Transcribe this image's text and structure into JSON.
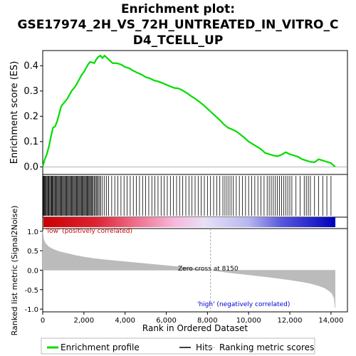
{
  "title_lines": [
    "Enrichment plot:",
    "GSE17974_2H_VS_72H_UNTREATED_IN_VITRO_C",
    "D4_TCELL_UP"
  ],
  "colors": {
    "es_line": "#00dd00",
    "hits": "#000000",
    "metric_fill": "#bbbbbb",
    "pos_label": "#cc0000",
    "neg_label": "#0000cc",
    "zero_line": "#aaaaaa"
  },
  "chart_data": [
    {
      "type": "line",
      "name": "enrichment-profile",
      "ylabel": "Enrichment score (ES)",
      "xlim": [
        0,
        14800
      ],
      "ylim": [
        -0.03,
        0.46
      ],
      "yticks": [
        0.0,
        0.1,
        0.2,
        0.3,
        0.4
      ],
      "ytick_labels": [
        "0.0",
        "0.1",
        "0.2",
        "0.3",
        "0.4"
      ],
      "x": [
        0,
        100,
        200,
        300,
        400,
        500,
        600,
        700,
        800,
        900,
        1000,
        1100,
        1200,
        1300,
        1400,
        1500,
        1600,
        1700,
        1800,
        1900,
        2000,
        2100,
        2200,
        2300,
        2400,
        2500,
        2600,
        2700,
        2800,
        2900,
        3000,
        3200,
        3400,
        3600,
        3800,
        4000,
        4200,
        4400,
        4600,
        4800,
        5000,
        5200,
        5400,
        5600,
        5800,
        6000,
        6200,
        6400,
        6600,
        6800,
        7000,
        7200,
        7400,
        7600,
        7800,
        8000,
        8200,
        8400,
        8600,
        8800,
        9000,
        9200,
        9400,
        9600,
        9800,
        10000,
        10200,
        10400,
        10600,
        10800,
        11000,
        11200,
        11400,
        11600,
        11800,
        12000,
        12200,
        12400,
        12600,
        12800,
        13000,
        13200,
        13400,
        13600,
        13800,
        14000,
        14200
      ],
      "y": [
        0.0,
        0.03,
        0.05,
        0.08,
        0.12,
        0.155,
        0.16,
        0.18,
        0.21,
        0.24,
        0.25,
        0.26,
        0.27,
        0.285,
        0.3,
        0.31,
        0.32,
        0.335,
        0.35,
        0.365,
        0.375,
        0.39,
        0.405,
        0.415,
        0.413,
        0.41,
        0.425,
        0.435,
        0.44,
        0.43,
        0.44,
        0.425,
        0.41,
        0.41,
        0.405,
        0.395,
        0.39,
        0.38,
        0.372,
        0.365,
        0.355,
        0.35,
        0.342,
        0.338,
        0.332,
        0.325,
        0.318,
        0.312,
        0.31,
        0.302,
        0.292,
        0.28,
        0.27,
        0.258,
        0.245,
        0.23,
        0.215,
        0.2,
        0.185,
        0.168,
        0.155,
        0.148,
        0.14,
        0.128,
        0.115,
        0.1,
        0.09,
        0.08,
        0.07,
        0.055,
        0.05,
        0.045,
        0.042,
        0.048,
        0.058,
        0.05,
        0.045,
        0.04,
        0.03,
        0.025,
        0.02,
        0.018,
        0.03,
        0.025,
        0.02,
        0.015,
        0.0
      ]
    },
    {
      "type": "bar",
      "name": "hits",
      "x": [
        30,
        60,
        90,
        120,
        160,
        200,
        240,
        270,
        300,
        340,
        380,
        420,
        450,
        480,
        520,
        560,
        600,
        640,
        680,
        720,
        760,
        800,
        840,
        880,
        920,
        960,
        1000,
        1040,
        1080,
        1120,
        1160,
        1200,
        1240,
        1280,
        1320,
        1360,
        1400,
        1440,
        1480,
        1520,
        1560,
        1600,
        1640,
        1680,
        1720,
        1760,
        1800,
        1840,
        1880,
        1920,
        1960,
        2000,
        2040,
        2080,
        2120,
        2160,
        2200,
        2240,
        2280,
        2320,
        2360,
        2400,
        2450,
        2500,
        2550,
        2600,
        2650,
        2700,
        2760,
        2820,
        2900,
        3000,
        3100,
        3200,
        3350,
        3500,
        3650,
        3800,
        3950,
        4100,
        4250,
        4400,
        4550,
        4700,
        4850,
        5000,
        5150,
        5300,
        5450,
        5600,
        5750,
        5900,
        6050,
        6200,
        6350,
        6500,
        6650,
        6800,
        6950,
        7100,
        7250,
        7400,
        7550,
        7700,
        7850,
        8000,
        8150,
        8300,
        8450,
        8600,
        8750,
        8850,
        8950,
        9050,
        9150,
        9250,
        9400,
        9550,
        9700,
        9850,
        10000,
        10150,
        10300,
        10450,
        10600,
        10750,
        10900,
        11000,
        11100,
        11200,
        11300,
        11400,
        11500,
        11600,
        11700,
        11800,
        11900,
        12000,
        12100,
        12300,
        12500,
        12700,
        12800,
        12900,
        13000,
        13200,
        13400,
        13600,
        13800,
        14000
      ]
    },
    {
      "type": "area",
      "name": "ranked-list-metric",
      "ylabel": "Ranked list metric (Signal2Noise)",
      "xlabel": "Rank in Ordered Dataset",
      "xlim": [
        0,
        14800
      ],
      "ylim": [
        -1.07,
        1.07
      ],
      "xticks": [
        0,
        2000,
        4000,
        6000,
        8000,
        10000,
        12000,
        14000
      ],
      "xtick_labels": [
        "0",
        "2,000",
        "4,000",
        "6,000",
        "8,000",
        "10,000",
        "12,000",
        "14,000"
      ],
      "yticks": [
        -1.0,
        -0.5,
        0.0,
        0.5,
        1.0
      ],
      "ytick_labels": [
        "-1.0",
        "-0.5",
        "0.0",
        "0.5",
        "1.0"
      ],
      "x": [
        0,
        50,
        150,
        300,
        500,
        800,
        1200,
        1600,
        2000,
        2500,
        3000,
        4000,
        5000,
        6000,
        7000,
        8150,
        9000,
        10000,
        11000,
        12000,
        12600,
        13000,
        13400,
        13700,
        13900,
        14050,
        14150,
        14200
      ],
      "y": [
        1.0,
        0.78,
        0.68,
        0.6,
        0.54,
        0.48,
        0.43,
        0.38,
        0.34,
        0.3,
        0.27,
        0.22,
        0.17,
        0.12,
        0.07,
        0.0,
        -0.06,
        -0.12,
        -0.18,
        -0.25,
        -0.3,
        -0.34,
        -0.4,
        -0.46,
        -0.53,
        -0.6,
        -0.72,
        -0.97
      ]
    }
  ],
  "annotations": {
    "positive_label": "'low' (positively correlated)",
    "negative_label": "'high' (negatively correlated)",
    "zero_cross": "Zero cross at 8150"
  },
  "zero_cross_rank": 8150,
  "legend": [
    {
      "label": "Enrichment profile",
      "marker": "thick-line",
      "color": "#00dd00"
    },
    {
      "label": "Hits",
      "marker": "line",
      "color": "#000000"
    },
    {
      "label": "Ranking metric scores",
      "marker": "thin-line",
      "color": "#bbbbbb"
    }
  ]
}
